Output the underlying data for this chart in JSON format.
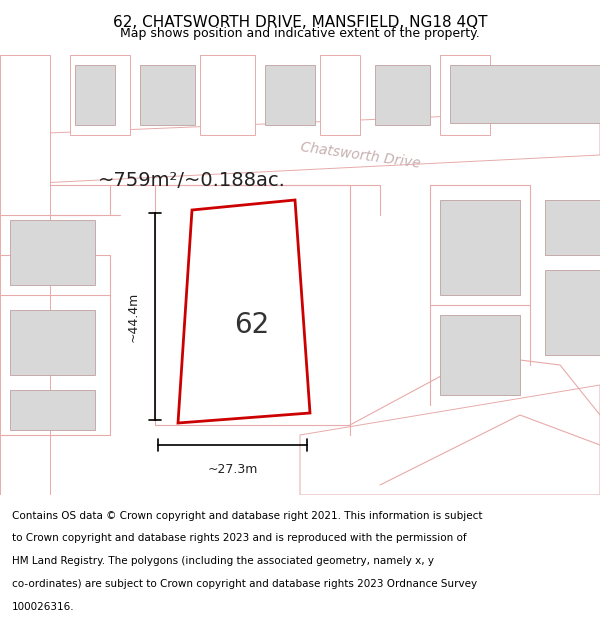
{
  "title": "62, CHATSWORTH DRIVE, MANSFIELD, NG18 4QT",
  "subtitle": "Map shows position and indicative extent of the property.",
  "area_label": "~759m²/~0.188ac.",
  "width_label": "~27.3m",
  "height_label": "~44.4m",
  "number_label": "62",
  "background_color": "#f7f4f2",
  "map_bg": "#f7f4f2",
  "road_fill": "#ffffff",
  "road_stroke": "#e8b0b0",
  "plot_stroke": "#cc0000",
  "plot_fill": "#ffffff",
  "building_fill": "#d8d8d8",
  "building_stroke": "#c0a0a0",
  "street_label": "Chatsworth Drive",
  "street_label_color": "#c8b0b0",
  "footer_text": "Contains OS data © Crown copyright and database right 2021. This information is subject to Crown copyright and database rights 2023 and is reproduced with the permission of HM Land Registry. The polygons (including the associated geometry, namely x, y co-ordinates) are subject to Crown copyright and database rights 2023 Ordnance Survey 100026316.",
  "title_fontsize": 11,
  "subtitle_fontsize": 9,
  "footer_fontsize": 7.5
}
